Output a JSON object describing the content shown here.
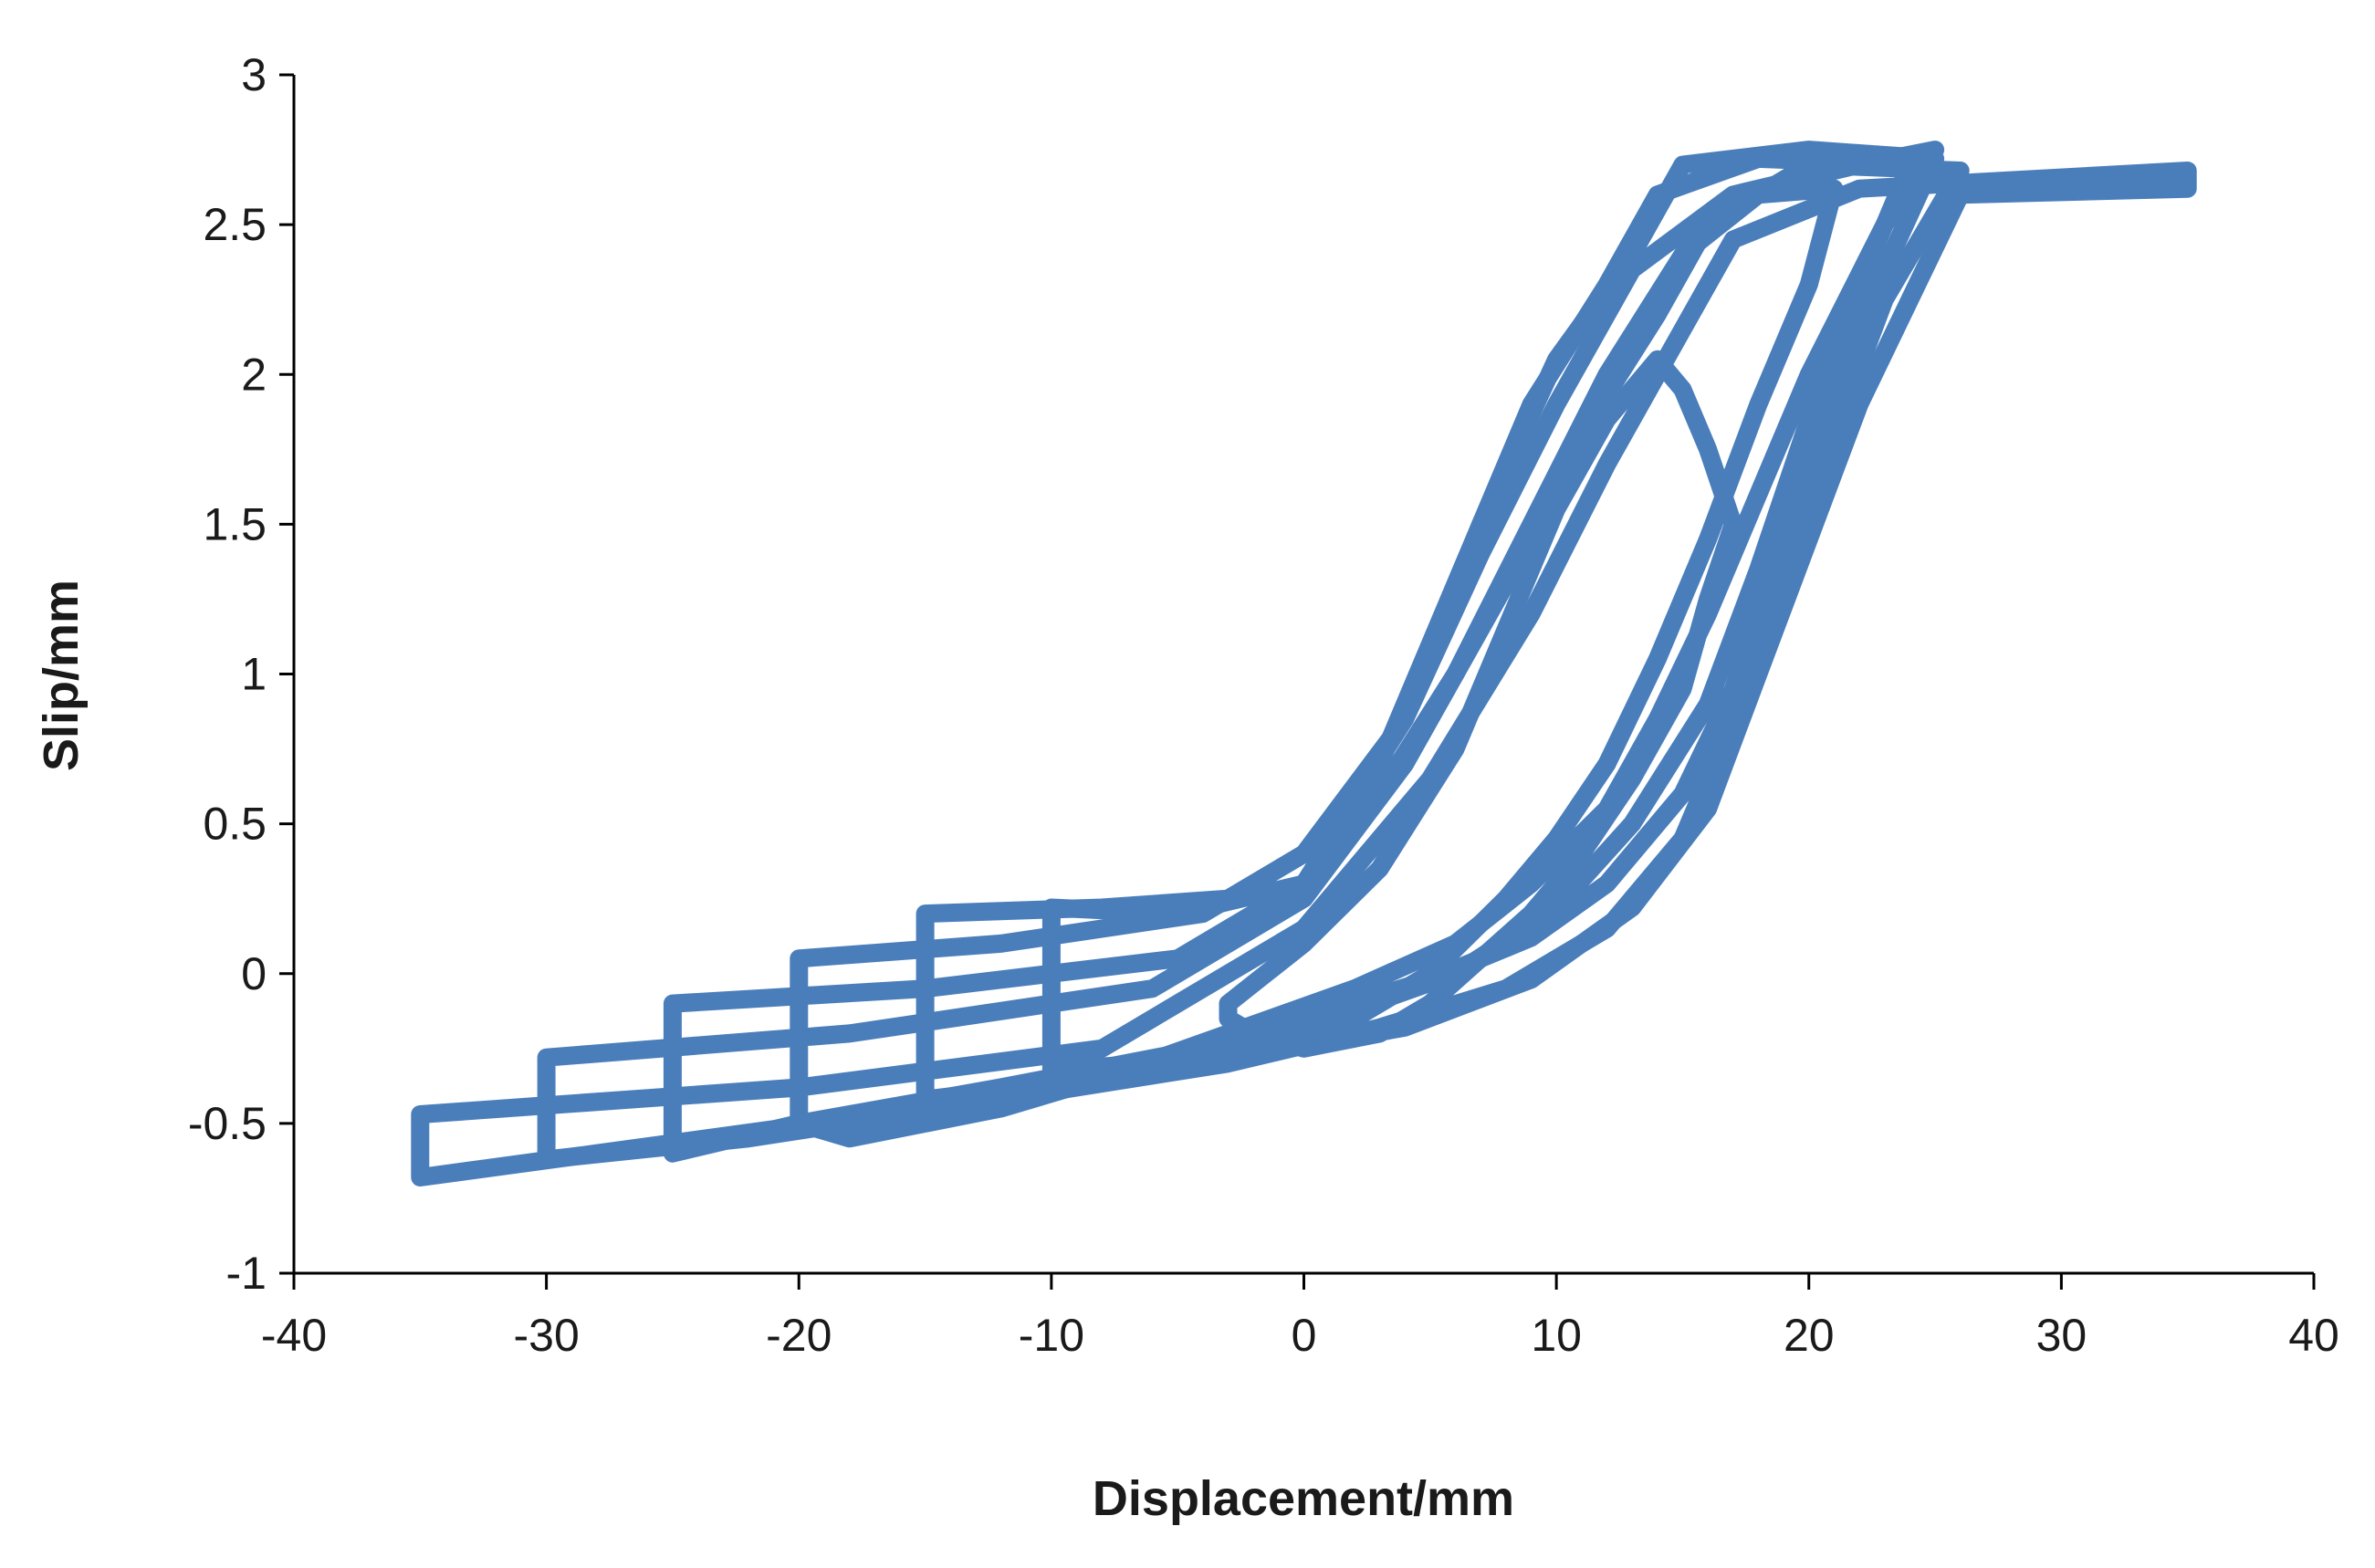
{
  "chart_data": {
    "type": "line",
    "title": "",
    "xlabel": "Displacement/mm",
    "ylabel": "Slip/mm",
    "xlim": [
      -40,
      40
    ],
    "ylim": [
      -1,
      3
    ],
    "xticks": [
      -40,
      -30,
      -20,
      -10,
      0,
      10,
      20,
      30,
      40
    ],
    "yticks": [
      -1,
      -0.5,
      0,
      0.5,
      1,
      1.5,
      2,
      2.5,
      3
    ],
    "xtick_labels": [
      "-40",
      "-30",
      "-20",
      "-10",
      "0",
      "10",
      "20",
      "30",
      "40"
    ],
    "ytick_labels": [
      "-1",
      "-0.5",
      "0",
      "0.5",
      "1",
      "1.5",
      "2",
      "2.5",
      "3"
    ],
    "grid": false,
    "legend": "none",
    "series": [
      {
        "color": "#4a7ebb",
        "loops": [
          {
            "x": [
              -3,
              0,
              3,
              6,
              8,
              10,
              12,
              14,
              15,
              16,
              17,
              16,
              15,
              13,
              11,
              9,
              7,
              5,
              3,
              0,
              -2,
              -3,
              -3
            ],
            "y": [
              -0.1,
              0.1,
              0.35,
              0.75,
              1.15,
              1.55,
              1.85,
              2.05,
              1.95,
              1.75,
              1.5,
              1.25,
              0.95,
              0.65,
              0.4,
              0.2,
              0.05,
              -0.1,
              -0.2,
              -0.25,
              -0.2,
              -0.15,
              -0.1
            ]
          },
          {
            "x": [
              -10,
              -5,
              0,
              3,
              6,
              9,
              12,
              15,
              18,
              21,
              20,
              18,
              16,
              14,
              12,
              10,
              8,
              5,
              2,
              -2,
              -6,
              -10,
              -10
            ],
            "y": [
              0.22,
              0.2,
              0.3,
              0.6,
              1.0,
              1.5,
              2.0,
              2.4,
              2.6,
              2.62,
              2.3,
              1.9,
              1.45,
              1.05,
              0.7,
              0.45,
              0.25,
              0.0,
              -0.15,
              -0.25,
              -0.3,
              -0.32,
              0.22
            ]
          },
          {
            "x": [
              -15,
              -8,
              -3,
              1,
              4,
              7,
              10,
              13,
              17,
              22,
              25,
              23,
              20,
              18,
              16,
              14,
              12,
              9,
              6,
              2,
              -3,
              -8,
              -15,
              -15
            ],
            "y": [
              0.2,
              0.22,
              0.25,
              0.45,
              0.85,
              1.4,
              1.9,
              2.35,
              2.6,
              2.7,
              2.75,
              2.5,
              2.0,
              1.6,
              1.2,
              0.85,
              0.55,
              0.3,
              0.1,
              -0.05,
              -0.2,
              -0.35,
              -0.42,
              0.2
            ]
          },
          {
            "x": [
              -20,
              -12,
              -4,
              0,
              4,
              7,
              10,
              13,
              15,
              20,
              25,
              23,
              21,
              19,
              17,
              15,
              12,
              9,
              5,
              0,
              -6,
              -12,
              -18,
              -20,
              -20
            ],
            "y": [
              0.05,
              0.1,
              0.2,
              0.4,
              0.85,
              1.5,
              2.05,
              2.4,
              2.7,
              2.75,
              2.72,
              2.35,
              1.95,
              1.45,
              0.95,
              0.6,
              0.3,
              0.12,
              -0.02,
              -0.15,
              -0.3,
              -0.45,
              -0.55,
              -0.5,
              0.05
            ]
          },
          {
            "x": [
              -25,
              -15,
              -5,
              0,
              3,
              6,
              9,
              12,
              14,
              18,
              24,
              22,
              20,
              18,
              16,
              13,
              10,
              6,
              2,
              -4,
              -12,
              -20,
              -25,
              -25
            ],
            "y": [
              -0.1,
              -0.05,
              0.05,
              0.3,
              0.7,
              1.3,
              1.9,
              2.3,
              2.6,
              2.72,
              2.7,
              2.3,
              1.85,
              1.35,
              0.9,
              0.5,
              0.22,
              0.0,
              -0.12,
              -0.25,
              -0.38,
              -0.5,
              -0.6,
              -0.1
            ]
          },
          {
            "x": [
              -30,
              -18,
              -6,
              0,
              4,
              8,
              11,
              14,
              16,
              20,
              26,
              23,
              21,
              19,
              17,
              15,
              12,
              8,
              3,
              -3,
              -12,
              -22,
              -30,
              -30
            ],
            "y": [
              -0.28,
              -0.2,
              -0.05,
              0.25,
              0.7,
              1.3,
              1.8,
              2.2,
              2.5,
              2.7,
              2.68,
              2.25,
              1.8,
              1.3,
              0.85,
              0.45,
              0.15,
              -0.05,
              -0.18,
              -0.3,
              -0.42,
              -0.55,
              -0.62,
              -0.28
            ]
          },
          {
            "x": [
              -35,
              -20,
              -8,
              0,
              5,
              9,
              12,
              15,
              17,
              22,
              35,
              35,
              26,
              24,
              22,
              20,
              18,
              16,
              13,
              9,
              4,
              -4,
              -15,
              -28,
              -35,
              -35
            ],
            "y": [
              -0.47,
              -0.38,
              -0.25,
              0.15,
              0.65,
              1.2,
              1.7,
              2.15,
              2.45,
              2.62,
              2.68,
              2.62,
              2.6,
              2.25,
              1.9,
              1.45,
              1.0,
              0.55,
              0.22,
              -0.02,
              -0.18,
              -0.3,
              -0.45,
              -0.6,
              -0.68,
              -0.47
            ]
          }
        ]
      }
    ]
  }
}
